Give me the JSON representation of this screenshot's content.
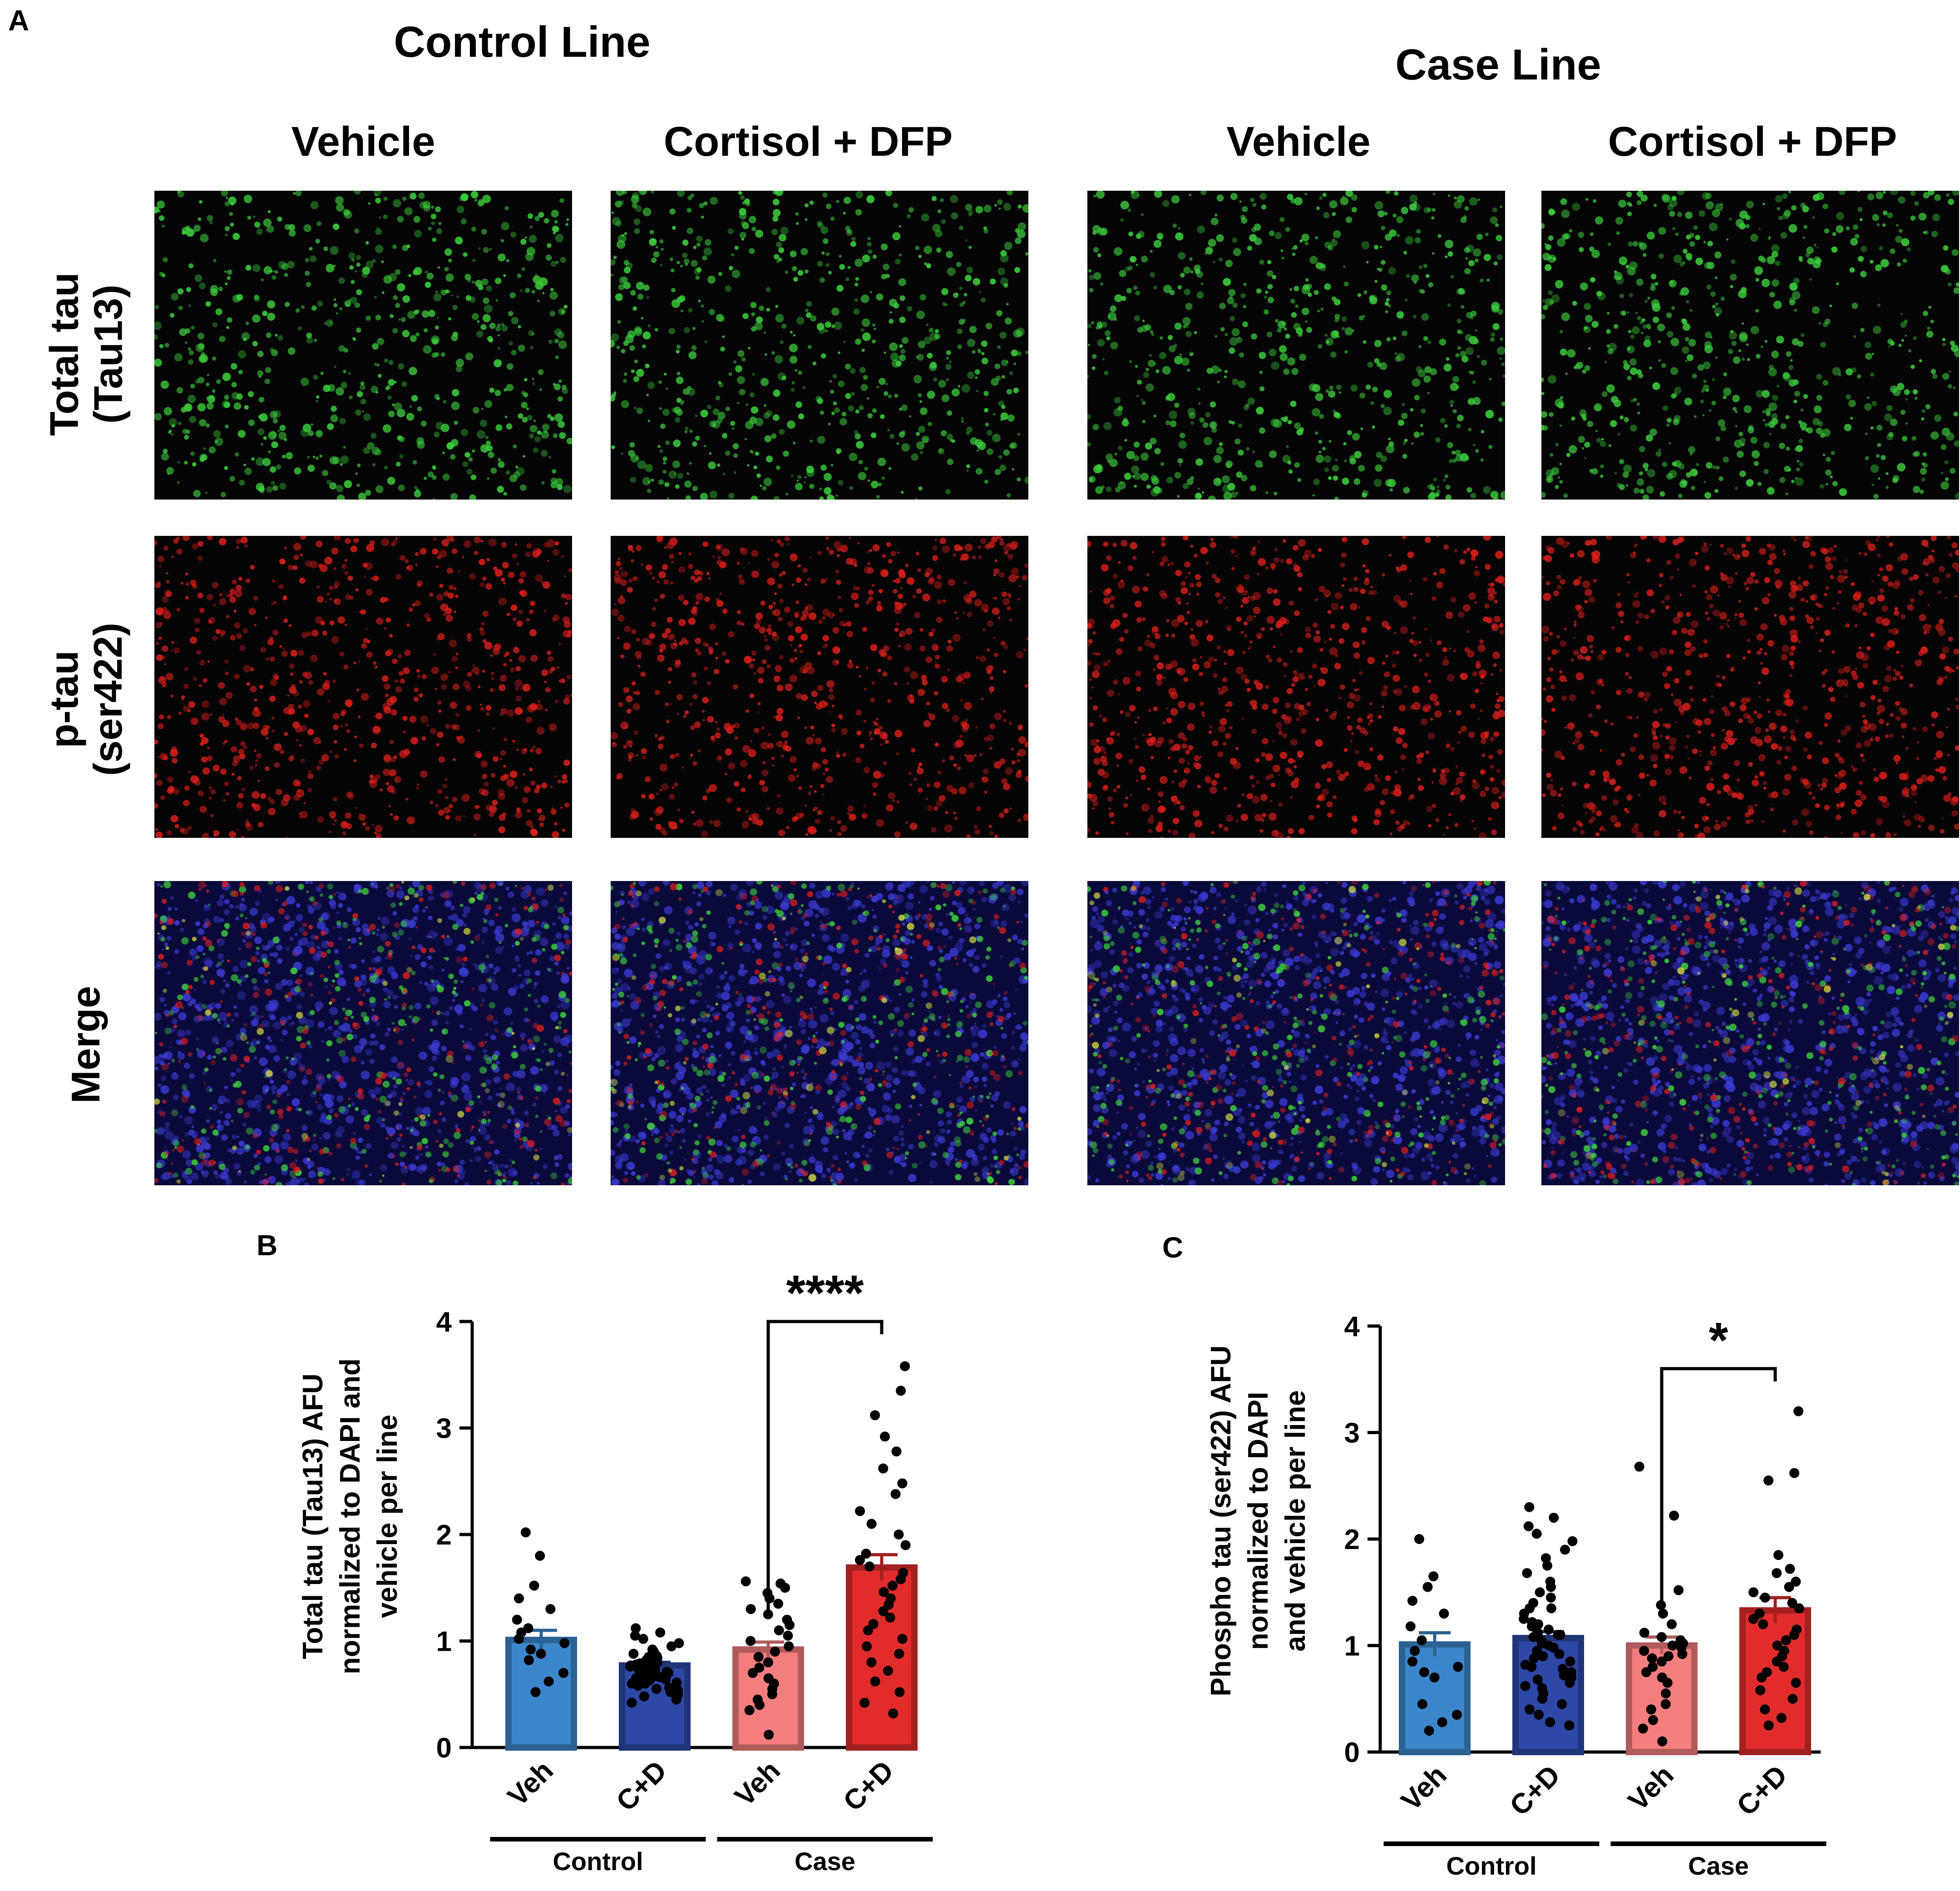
{
  "figure": {
    "panel_a": {
      "letter": "A",
      "groups": [
        {
          "title": "Control Line",
          "conditions": [
            "Vehicle",
            "Cortisol + DFP"
          ]
        },
        {
          "title": "Case Line",
          "conditions": [
            "Vehicle",
            "Cortisol + DFP"
          ]
        }
      ],
      "rows": [
        {
          "label_line1": "Total tau",
          "label_line2": "(Tau13)",
          "stain": "green"
        },
        {
          "label_line1": "p-tau",
          "label_line2": "(ser422)",
          "stain": "red"
        },
        {
          "label_line1": "Merge",
          "label_line2": "",
          "stain": "merge"
        }
      ],
      "colors": {
        "green": "#3ccf3c",
        "red": "#e0201c",
        "blue": "#2d2fb0",
        "yellow": "#d8e040"
      }
    }
  },
  "chart_data": [
    {
      "panel": "B",
      "type": "bar",
      "ylabel_lines": [
        "Total tau (Tau13) AFU",
        "normalized to DAPI and",
        "vehicle per line"
      ],
      "ylim": [
        0,
        4
      ],
      "yticks": [
        "0",
        "1",
        "2",
        "3",
        "4"
      ],
      "categories": [
        "Veh",
        "C+D",
        "Veh",
        "C+D"
      ],
      "groups": [
        {
          "label": "Control",
          "span": [
            0,
            1
          ]
        },
        {
          "label": "Case",
          "span": [
            2,
            3
          ]
        }
      ],
      "values": [
        1.01,
        0.77,
        0.92,
        1.69
      ],
      "errors": [
        0.09,
        0.03,
        0.07,
        0.12
      ],
      "bar_colors": [
        "#3c87cc",
        "#2d48a6",
        "#f47e7e",
        "#e22c2c"
      ],
      "points": [
        [
          2.02,
          1.8,
          1.52,
          1.4,
          1.3,
          1.2,
          1.12,
          1.08,
          1.02,
          0.98,
          0.92,
          0.88,
          0.82,
          0.7,
          0.62,
          0.52
        ],
        [
          1.12,
          1.08,
          1.05,
          1.02,
          0.98,
          0.95,
          0.92,
          0.9,
          0.88,
          0.86,
          0.84,
          0.82,
          0.8,
          0.79,
          0.78,
          0.77,
          0.76,
          0.75,
          0.74,
          0.73,
          0.72,
          0.71,
          0.7,
          0.69,
          0.68,
          0.67,
          0.66,
          0.65,
          0.64,
          0.63,
          0.62,
          0.61,
          0.6,
          0.58,
          0.56,
          0.54,
          0.52,
          0.5,
          0.48,
          0.45,
          0.42,
          0.85,
          0.8,
          0.75,
          0.7,
          0.65,
          0.6,
          0.55
        ],
        [
          1.56,
          1.54,
          1.5,
          1.45,
          1.4,
          1.35,
          1.3,
          1.25,
          1.2,
          1.15,
          1.1,
          1.05,
          1.0,
          0.95,
          0.9,
          0.85,
          0.8,
          0.75,
          0.7,
          0.65,
          0.6,
          0.55,
          0.5,
          0.45,
          0.4,
          0.35,
          0.12
        ],
        [
          3.58,
          3.35,
          3.12,
          2.92,
          2.78,
          2.62,
          2.48,
          2.38,
          2.22,
          2.1,
          2.0,
          1.9,
          1.82,
          1.76,
          1.7,
          1.64,
          1.58,
          1.52,
          1.46,
          1.4,
          1.34,
          1.28,
          1.22,
          1.16,
          1.1,
          1.02,
          0.95,
          0.88,
          0.8,
          0.72,
          0.62,
          0.52,
          0.42,
          0.32
        ]
      ],
      "significance": {
        "from": 2,
        "to": 3,
        "label": "****",
        "bracket_y": 4.0
      }
    },
    {
      "panel": "C",
      "type": "bar",
      "ylabel_lines": [
        "Phospho tau (ser422) AFU",
        "normalized to DAPI",
        "and vehicle per line"
      ],
      "ylim": [
        0,
        4
      ],
      "yticks": [
        "0",
        "1",
        "2",
        "3",
        "4"
      ],
      "categories": [
        "Veh",
        "C+D",
        "Veh",
        "C+D"
      ],
      "groups": [
        {
          "label": "Control",
          "span": [
            0,
            1
          ]
        },
        {
          "label": "Case",
          "span": [
            2,
            3
          ]
        }
      ],
      "values": [
        1.01,
        1.07,
        1.0,
        1.33
      ],
      "errors": [
        0.11,
        0.06,
        0.08,
        0.12
      ],
      "bar_colors": [
        "#3c87cc",
        "#2d48a6",
        "#f47e7e",
        "#e22c2c"
      ],
      "points": [
        [
          2.0,
          1.65,
          1.55,
          1.42,
          1.3,
          1.18,
          1.05,
          0.95,
          0.85,
          0.8,
          0.75,
          0.7,
          0.45,
          0.35,
          0.28,
          0.2
        ],
        [
          2.3,
          2.2,
          2.12,
          2.05,
          1.98,
          1.9,
          1.82,
          1.75,
          1.68,
          1.6,
          1.55,
          1.5,
          1.45,
          1.4,
          1.35,
          1.3,
          1.25,
          1.22,
          1.18,
          1.15,
          1.12,
          1.1,
          1.08,
          1.05,
          1.02,
          1.0,
          0.98,
          0.95,
          0.92,
          0.9,
          0.88,
          0.85,
          0.82,
          0.8,
          0.78,
          0.75,
          0.72,
          0.7,
          0.68,
          0.65,
          0.62,
          0.6,
          0.55,
          0.5,
          0.45,
          0.4,
          0.35,
          0.28,
          0.25,
          1.35,
          1.2,
          1.1
        ],
        [
          2.68,
          2.22,
          1.52,
          1.38,
          1.3,
          1.2,
          1.12,
          1.08,
          1.05,
          1.02,
          1.0,
          0.98,
          0.95,
          0.92,
          0.9,
          0.88,
          0.85,
          0.8,
          0.75,
          0.7,
          0.65,
          0.55,
          0.45,
          0.4,
          0.3,
          0.22,
          0.1
        ],
        [
          3.2,
          2.62,
          2.55,
          1.85,
          1.72,
          1.68,
          1.6,
          1.55,
          1.5,
          1.45,
          1.4,
          1.35,
          1.3,
          1.25,
          1.2,
          1.15,
          1.1,
          1.05,
          1.0,
          0.95,
          0.9,
          0.85,
          0.8,
          0.75,
          0.7,
          0.65,
          0.58,
          0.5,
          0.4,
          0.32,
          0.25
        ]
      ],
      "significance": {
        "from": 2,
        "to": 3,
        "label": "*",
        "bracket_y": 3.6
      }
    }
  ],
  "panel_b_letter": "B",
  "panel_c_letter": "C"
}
